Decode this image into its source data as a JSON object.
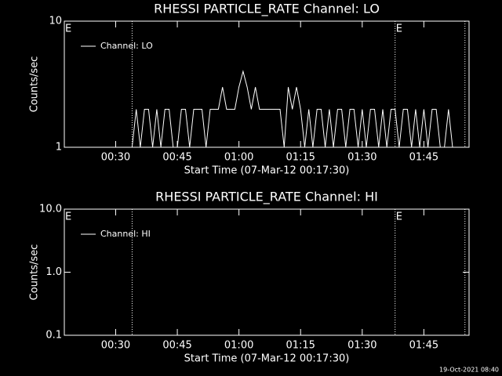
{
  "chart_data": [
    {
      "type": "line",
      "title": "RHESSI PARTICLE_RATE Channel: LO",
      "x_label": "Start Time (07-Mar-12 00:17:30)",
      "y_label": "Counts/sec",
      "log_y": true,
      "ylim": [
        1,
        10
      ],
      "yticks": [
        1,
        10
      ],
      "xlim": [
        "00:17:30",
        "01:56:00"
      ],
      "xticks": [
        "00:30",
        "00:45",
        "01:00",
        "01:15",
        "01:30",
        "01:45"
      ],
      "legend": "upper left",
      "markers": [
        "00:34:00",
        "01:38:00",
        "01:55:00"
      ],
      "annotations": [
        {
          "text": "E",
          "x": "00:17:30"
        },
        {
          "text": "E",
          "x": "01:38:00"
        }
      ],
      "x": [
        "00:18",
        "00:19",
        "00:20",
        "00:21",
        "00:22",
        "00:23",
        "00:24",
        "00:25",
        "00:26",
        "00:27",
        "00:28",
        "00:29",
        "00:30",
        "00:31",
        "00:32",
        "00:33",
        "00:34",
        "00:35",
        "00:36",
        "00:37",
        "00:38",
        "00:39",
        "00:40",
        "00:41",
        "00:42",
        "00:43",
        "00:44",
        "00:45",
        "00:46",
        "00:47",
        "00:48",
        "00:49",
        "00:50",
        "00:51",
        "00:52",
        "00:53",
        "00:54",
        "00:55",
        "00:56",
        "00:57",
        "00:58",
        "00:59",
        "01:00",
        "01:01",
        "01:02",
        "01:03",
        "01:04",
        "01:05",
        "01:06",
        "01:07",
        "01:08",
        "01:09",
        "01:10",
        "01:11",
        "01:12",
        "01:13",
        "01:14",
        "01:15",
        "01:16",
        "01:17",
        "01:18",
        "01:19",
        "01:20",
        "01:21",
        "01:22",
        "01:23",
        "01:24",
        "01:25",
        "01:26",
        "01:27",
        "01:28",
        "01:29",
        "01:30",
        "01:31",
        "01:32",
        "01:33",
        "01:34",
        "01:35",
        "01:36",
        "01:37",
        "01:38",
        "01:39",
        "01:40",
        "01:41",
        "01:42",
        "01:43",
        "01:44",
        "01:45",
        "01:46",
        "01:47",
        "01:48",
        "01:49",
        "01:50",
        "01:51",
        "01:52",
        "01:53"
      ],
      "series": [
        {
          "name": "Channel: LO",
          "color": "#ffffff",
          "values": [
            1,
            1,
            1,
            1,
            1,
            1,
            1,
            1,
            1,
            1,
            1,
            1,
            1,
            1,
            1,
            1,
            1,
            2,
            1,
            2,
            2,
            1,
            2,
            1,
            2,
            2,
            1,
            1,
            2,
            2,
            1,
            2,
            2,
            2,
            1,
            2,
            2,
            2,
            3,
            2,
            2,
            2,
            3,
            4,
            3,
            2,
            3,
            2,
            2,
            2,
            2,
            2,
            2,
            1,
            3,
            2,
            3,
            2,
            1,
            2,
            1,
            2,
            2,
            1,
            2,
            1,
            2,
            2,
            1,
            2,
            2,
            1,
            2,
            1,
            2,
            2,
            1,
            2,
            1,
            2,
            2,
            1,
            2,
            2,
            1,
            2,
            1,
            2,
            1,
            2,
            2,
            1,
            1,
            2,
            1,
            1
          ]
        }
      ]
    },
    {
      "type": "line",
      "title": "RHESSI PARTICLE_RATE Channel: HI",
      "x_label": "Start Time (07-Mar-12 00:17:30)",
      "y_label": "Counts/sec",
      "log_y": true,
      "ylim": [
        0.1,
        10
      ],
      "yticks": [
        0.1,
        {
          "value": 1,
          "label": "1.0"
        },
        {
          "value": 10,
          "label": "10.0"
        }
      ],
      "xlim": [
        "00:17:30",
        "01:56:00"
      ],
      "xticks": [
        "00:30",
        "00:45",
        "01:00",
        "01:15",
        "01:30",
        "01:45"
      ],
      "legend": "upper left",
      "markers": [
        "00:34:00",
        "01:38:00",
        "01:55:00"
      ],
      "annotations": [
        {
          "text": "E",
          "x": "00:17:30"
        },
        {
          "text": "E",
          "x": "01:38:00"
        }
      ],
      "x": [],
      "series": [
        {
          "name": "Channel: HI",
          "color": "#ffffff",
          "values": []
        }
      ]
    }
  ],
  "footer": "19-Oct-2021 08:40"
}
